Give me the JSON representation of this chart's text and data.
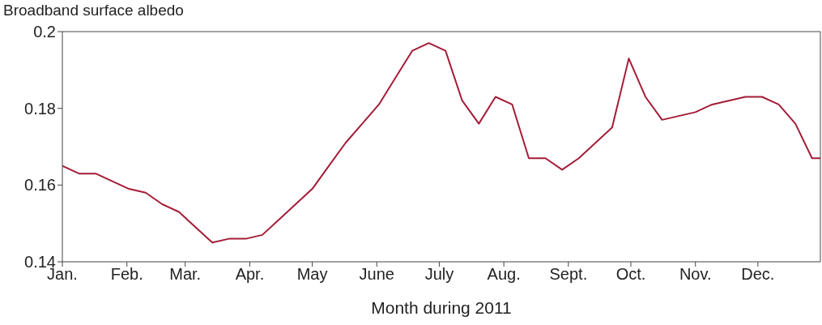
{
  "chart_data": {
    "type": "line",
    "ylabel": "Broadband surface albedo",
    "xlabel": "Month during 2011",
    "x": [
      "2011-01-01",
      "2011-01-09",
      "2011-01-17",
      "2011-01-25",
      "2011-02-02",
      "2011-02-10",
      "2011-02-18",
      "2011-02-26",
      "2011-03-06",
      "2011-03-14",
      "2011-03-22",
      "2011-03-30",
      "2011-04-07",
      "2011-04-15",
      "2011-04-23",
      "2011-05-01",
      "2011-05-09",
      "2011-05-17",
      "2011-05-25",
      "2011-06-02",
      "2011-06-10",
      "2011-06-18",
      "2011-06-26",
      "2011-07-04",
      "2011-07-12",
      "2011-07-20",
      "2011-07-28",
      "2011-08-05",
      "2011-08-13",
      "2011-08-21",
      "2011-08-29",
      "2011-09-06",
      "2011-09-14",
      "2011-09-22",
      "2011-09-30",
      "2011-10-08",
      "2011-10-16",
      "2011-10-24",
      "2011-11-01",
      "2011-11-09",
      "2011-11-17",
      "2011-11-25",
      "2011-12-03",
      "2011-12-11",
      "2011-12-19",
      "2011-12-27",
      "2011-12-31"
    ],
    "series": [
      {
        "color": "#a31c37",
        "values": [
          0.165,
          0.163,
          0.163,
          0.161,
          0.159,
          0.158,
          0.155,
          0.153,
          0.149,
          0.145,
          0.146,
          0.146,
          0.147,
          0.151,
          0.155,
          0.159,
          0.165,
          0.171,
          0.176,
          0.181,
          0.188,
          0.195,
          0.197,
          0.195,
          0.182,
          0.176,
          0.183,
          0.181,
          0.167,
          0.167,
          0.164,
          0.167,
          0.171,
          0.175,
          0.193,
          0.183,
          0.177,
          0.178,
          0.179,
          0.181,
          0.182,
          0.183,
          0.183,
          0.181,
          0.176,
          0.167,
          0.167
        ]
      }
    ],
    "xlim": [
      "2011-01-01",
      "2011-12-31"
    ],
    "xticks": [
      {
        "value": "2011-01-01",
        "label": "Jan."
      },
      {
        "value": "2011-02-01",
        "label": "Feb."
      },
      {
        "value": "2011-03-01",
        "label": "Mar."
      },
      {
        "value": "2011-04-01",
        "label": "Apr."
      },
      {
        "value": "2011-05-01",
        "label": "May"
      },
      {
        "value": "2011-06-01",
        "label": "June"
      },
      {
        "value": "2011-07-01",
        "label": "July"
      },
      {
        "value": "2011-08-01",
        "label": "Aug."
      },
      {
        "value": "2011-09-01",
        "label": "Sept."
      },
      {
        "value": "2011-10-01",
        "label": "Oct."
      },
      {
        "value": "2011-11-01",
        "label": "Nov."
      },
      {
        "value": "2011-12-01",
        "label": "Dec."
      }
    ],
    "ylim": [
      0.14,
      0.2
    ],
    "yticks": [
      0.14,
      0.16,
      0.18,
      0.2
    ],
    "grid": false,
    "legend": false,
    "marker": "none",
    "line_style": "solid"
  }
}
